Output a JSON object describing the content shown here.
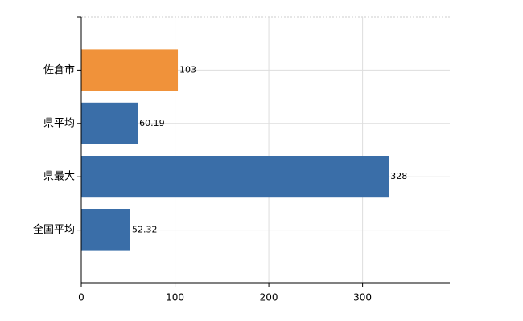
{
  "chart_data": {
    "type": "bar",
    "orientation": "horizontal",
    "categories": [
      "佐倉市",
      "県平均",
      "県最大",
      "全国平均"
    ],
    "values": [
      103,
      60.19,
      328,
      52.32
    ],
    "colors": [
      "#f0923a",
      "#3a6ea8",
      "#3a6ea8",
      "#3a6ea8"
    ],
    "xlim": [
      0,
      393
    ],
    "xticks": [
      0,
      100,
      200,
      300
    ],
    "grid": true
  }
}
